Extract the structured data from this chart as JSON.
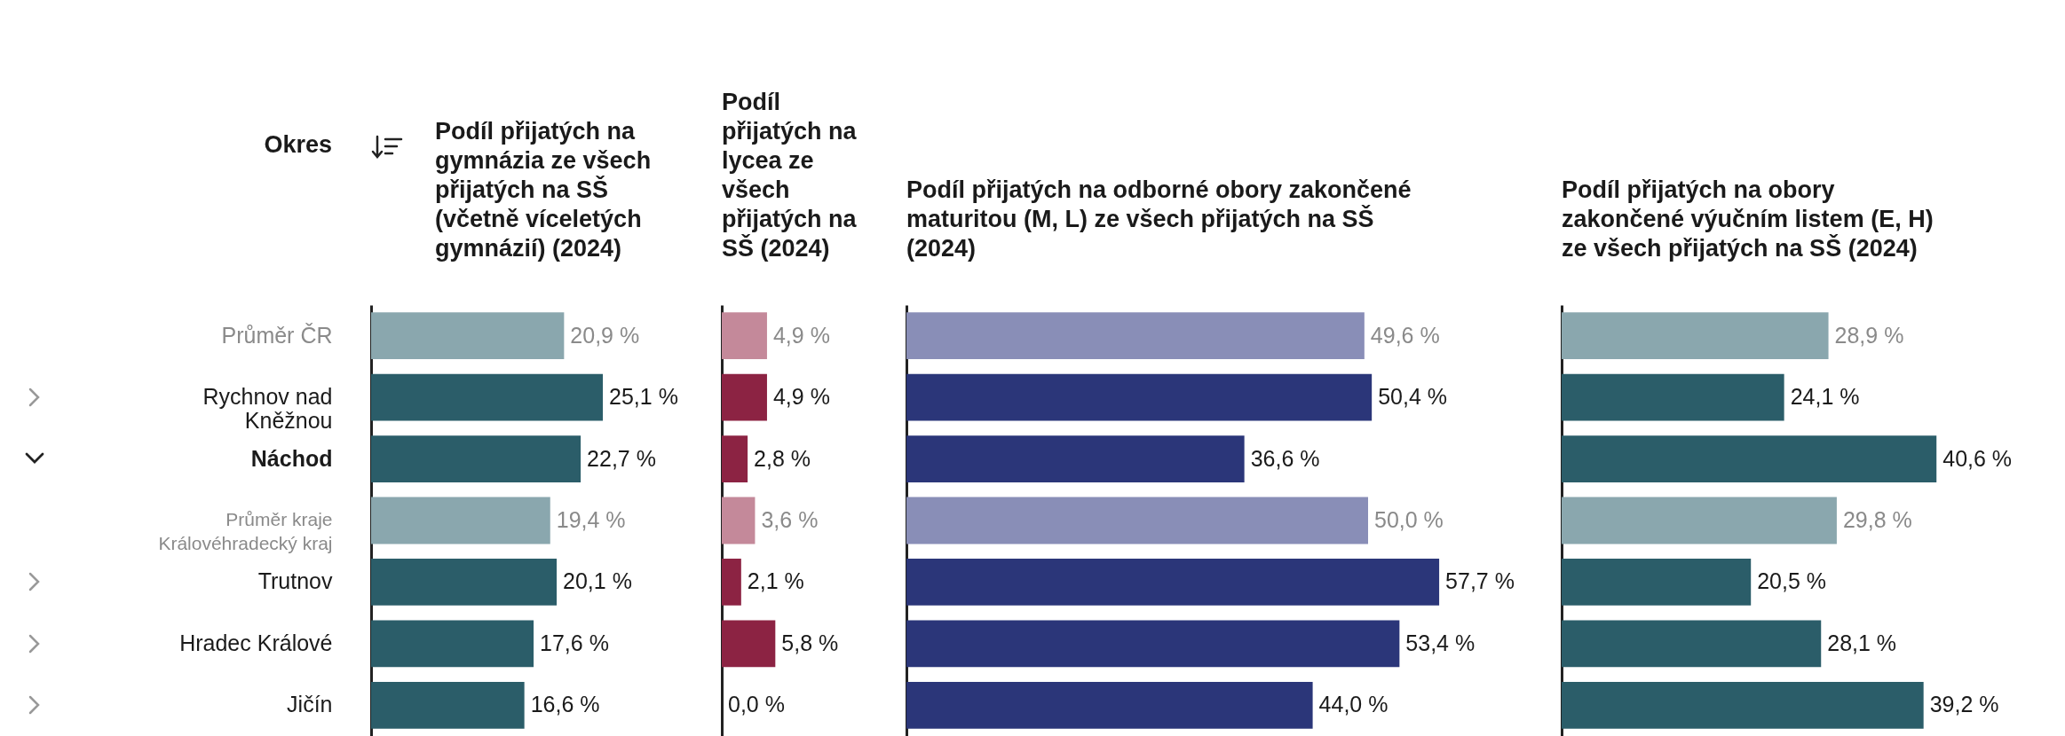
{
  "chart_data": [
    {
      "type": "bar",
      "orientation": "horizontal",
      "title": "Podíl přijatých na gymnázia ze všech přijatých na SŠ (včetně víceletých gymnázií) (2024)",
      "ylabel": "Okres",
      "tick_labels": "y",
      "categories": [
        "Průměr ČR",
        "Rychnov nad Kněžnou",
        "Náchod",
        "Průměr kraje Královéhradecký kraj",
        "Trutnov",
        "Hradec Králové",
        "Jičín"
      ],
      "values": [
        20.9,
        25.1,
        22.7,
        19.4,
        20.1,
        17.6,
        16.6
      ],
      "colors": [
        "#8aa7ae",
        "#2b5d69",
        "#2b5d69",
        "#8aa7ae",
        "#2b5d69",
        "#2b5d69",
        "#2b5d69"
      ],
      "value_labels": [
        "20,9 %",
        "25,1 %",
        "22,7 %",
        "19,4 %",
        "20,1 %",
        "17,6 %",
        "16,6 %"
      ]
    },
    {
      "type": "bar",
      "orientation": "horizontal",
      "title": "Podíl přijatých na lycea ze všech přijatých na SŠ (2024)",
      "tick_labels": false,
      "values": [
        4.9,
        4.9,
        2.8,
        3.6,
        2.1,
        5.8,
        0.0
      ],
      "colors": [
        "#c4899a",
        "#8c2343",
        "#8c2343",
        "#c4899a",
        "#8c2343",
        "#8c2343",
        "#8c2343"
      ],
      "value_labels": [
        "4,9 %",
        "4,9 %",
        "2,8 %",
        "3,6 %",
        "2,1 %",
        "5,8 %",
        "0,0 %"
      ]
    },
    {
      "type": "bar",
      "orientation": "horizontal",
      "title": "Podíl přijatých na odborné obory zakončené maturitou (M, L) ze všech přijatých na SŠ (2024)",
      "tick_labels": false,
      "values": [
        49.6,
        50.4,
        36.6,
        50.0,
        57.7,
        53.4,
        44.0
      ],
      "colors": [
        "#898eb7",
        "#2b3679",
        "#2b3679",
        "#898eb7",
        "#2b3679",
        "#2b3679",
        "#2b3679"
      ],
      "value_labels": [
        "49,6 %",
        "50,4 %",
        "36,6 %",
        "50,0 %",
        "57,7 %",
        "53,4 %",
        "44,0 %"
      ]
    },
    {
      "type": "bar",
      "orientation": "horizontal",
      "title": "Podíl přijatých na obory zakončené výučním listem (E, H) ze všech přijatých na SŠ (2024)",
      "tick_labels": false,
      "values": [
        28.9,
        24.1,
        40.6,
        29.8,
        20.5,
        28.1,
        39.2
      ],
      "colors": [
        "#8aa7ae",
        "#2b5d69",
        "#2b5d69",
        "#8aa7ae",
        "#2b5d69",
        "#2b5d69",
        "#2b5d69"
      ],
      "value_labels": [
        "28,9 %",
        "24,1 %",
        "40,6 %",
        "29,8 %",
        "20,5 %",
        "28,1 %",
        "39,2 %"
      ]
    }
  ]
}
